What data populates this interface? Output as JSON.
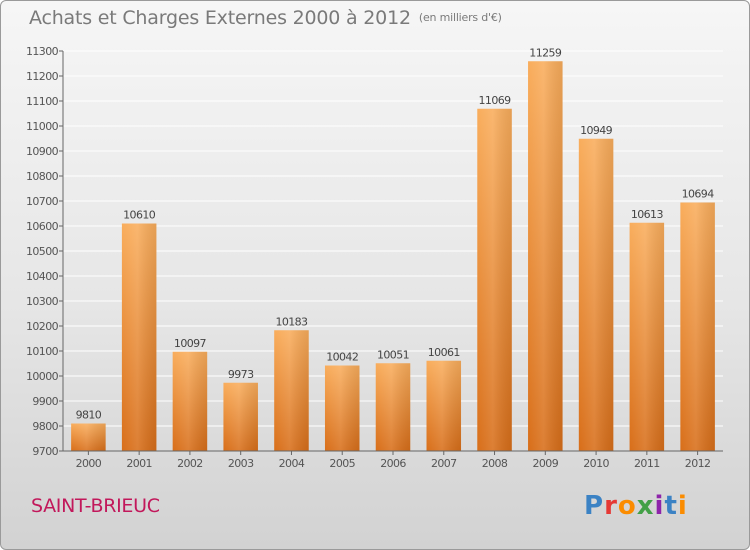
{
  "header": {
    "title": "Achats et Charges Externes 2000 à 2012",
    "unit": "(en milliers d'€)"
  },
  "footer": {
    "city": "SAINT-BRIEUC",
    "brand_logo": "Proxiti"
  },
  "colors": {
    "bar_light": "#f7a754",
    "bar_dark": "#d86e19",
    "grid": "#ffffff",
    "city": "#c2185b"
  },
  "chart_data": {
    "type": "bar",
    "title": "Achats et Charges Externes 2000 à 2012",
    "subtitle": "(en milliers d'€)",
    "categories": [
      "2000",
      "2001",
      "2002",
      "2003",
      "2004",
      "2005",
      "2006",
      "2007",
      "2008",
      "2009",
      "2010",
      "2011",
      "2012"
    ],
    "values": [
      9810,
      10610,
      10097,
      9973,
      10183,
      10042,
      10051,
      10061,
      11069,
      11259,
      10949,
      10613,
      10694
    ],
    "ylim": [
      9700,
      11300
    ],
    "yticks": [
      9700,
      9800,
      9900,
      10000,
      10100,
      10200,
      10300,
      10400,
      10500,
      10600,
      10700,
      10800,
      10900,
      11000,
      11100,
      11200,
      11300
    ],
    "grid": true,
    "xlabel": "",
    "ylabel": ""
  }
}
